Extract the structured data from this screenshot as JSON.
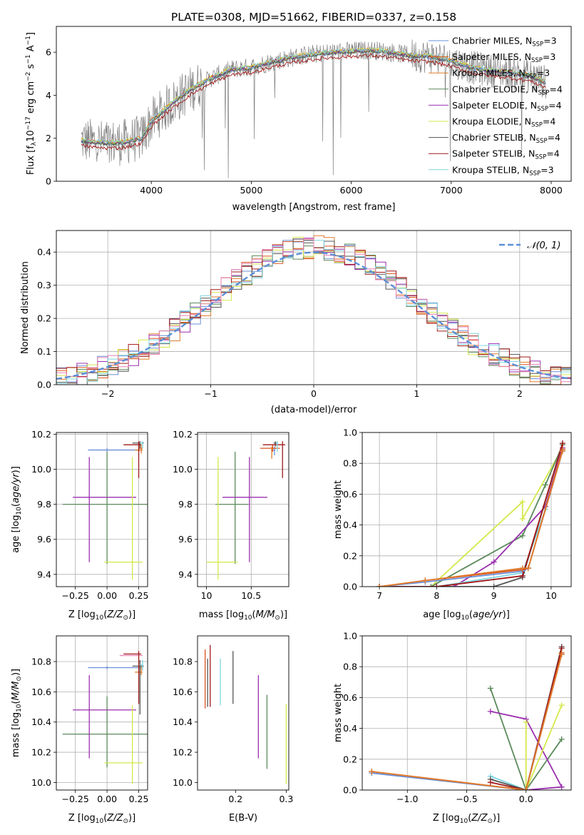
{
  "colors": {
    "chabrier_miles": "#6a8fd8",
    "salpeter_miles": "#d9541e",
    "kroupa_miles": "#e07b2a",
    "chabrier_elodie": "#5b8a5b",
    "salpeter_elodie": "#9b30b0",
    "kroupa_elodie": "#d4e84a",
    "chabrier_stelib": "#555555",
    "salpeter_stelib": "#a01818",
    "kroupa_stelib": "#7fd6e0",
    "data": "#808080",
    "pink": "#e87fb0"
  },
  "chart_data": [
    {
      "id": "spectrum",
      "type": "line",
      "title": "PLATE=0308, MJD=51662, FIBERID=0337, z=0.158",
      "xlabel": "wavelength [Angstrom, rest frame]",
      "ylabel": "Flux [fλ10⁻¹⁷ erg cm⁻² s⁻¹ A⁻¹]",
      "xlim": [
        3050,
        8200
      ],
      "ylim": [
        0,
        7.2
      ],
      "xticks": [
        4000,
        5000,
        6000,
        7000,
        8000
      ],
      "yticks": [
        0,
        2,
        4,
        6
      ],
      "model_continuum": {
        "x": [
          3300,
          3500,
          3700,
          3900,
          4000,
          4200,
          4400,
          4600,
          4800,
          5000,
          5200,
          5400,
          5600,
          5800,
          6000,
          6200,
          6400,
          6600,
          6800,
          7000,
          7200,
          7400,
          7600,
          7800,
          7950
        ],
        "y": [
          1.9,
          1.8,
          1.8,
          2.0,
          2.8,
          3.6,
          4.3,
          4.8,
          5.2,
          5.3,
          5.55,
          5.75,
          5.9,
          6.0,
          6.05,
          6.1,
          6.0,
          5.85,
          5.8,
          5.6,
          5.3,
          5.15,
          5.05,
          4.9,
          4.6
        ]
      },
      "legend": [
        {
          "label": "Chabrier MILES, N",
          "sub": "SSP",
          "tail": "=3",
          "color_key": "chabrier_miles"
        },
        {
          "label": "Salpeter MILES, N",
          "sub": "SSP",
          "tail": "=3",
          "color_key": "salpeter_miles"
        },
        {
          "label": "Kroupa MILES, N",
          "sub": "SSP",
          "tail": "=3",
          "color_key": "kroupa_miles"
        },
        {
          "label": "Chabrier ELODIE, N",
          "sub": "SSP",
          "tail": "=4",
          "color_key": "chabrier_elodie"
        },
        {
          "label": "Salpeter ELODIE, N",
          "sub": "SSP",
          "tail": "=4",
          "color_key": "salpeter_elodie"
        },
        {
          "label": "Kroupa ELODIE, N",
          "sub": "SSP",
          "tail": "=4",
          "color_key": "kroupa_elodie"
        },
        {
          "label": "Chabrier STELIB, N",
          "sub": "SSP",
          "tail": "=4",
          "color_key": "chabrier_stelib"
        },
        {
          "label": "Salpeter STELIB, N",
          "sub": "SSP",
          "tail": "=4",
          "color_key": "salpeter_stelib"
        },
        {
          "label": "Kroupa STELIB, N",
          "sub": "SSP",
          "tail": "=3",
          "color_key": "kroupa_stelib"
        }
      ],
      "legend_position": "upper right"
    },
    {
      "id": "residuals",
      "type": "histogram",
      "xlabel": "(data-model)/error",
      "ylabel": "Normed distribution",
      "xlim": [
        -2.5,
        2.5
      ],
      "ylim": [
        0,
        0.465
      ],
      "xticks": [
        -2,
        -1,
        0,
        1,
        2
      ],
      "yticks": [
        0.0,
        0.1,
        0.2,
        0.3,
        0.4
      ],
      "legend": "𝒩(0, 1)",
      "legend_position": "upper right",
      "gaussian": {
        "mean": 0,
        "sigma": 1
      },
      "bin_width": 0.1,
      "grid": true
    },
    {
      "id": "age_vs_Z",
      "type": "errorbar",
      "xlabel": "Z [log₁₀(Z/Z⊙)]",
      "ylabel": "age  [log₁₀(age/yr)]",
      "xlim": [
        -0.4,
        0.32
      ],
      "ylim": [
        9.33,
        10.21
      ],
      "xticks": [
        -0.25,
        0.0,
        0.25
      ],
      "yticks": [
        9.4,
        9.6,
        9.8,
        10.0,
        10.2
      ],
      "points": [
        {
          "key": "chabrier_elodie",
          "x": 0.0,
          "xerr": [
            0.35,
            0.35
          ],
          "y": 9.8,
          "yerr": [
            0.34,
            0.3
          ]
        },
        {
          "key": "salpeter_elodie",
          "x": -0.14,
          "xerr": [
            0.13,
            0.37
          ],
          "y": 9.84,
          "yerr": [
            0.37,
            0.23
          ]
        },
        {
          "key": "kroupa_elodie",
          "x": 0.2,
          "xerr": [
            0.22,
            0.08
          ],
          "y": 9.47,
          "yerr": [
            0.1,
            0.6
          ]
        },
        {
          "key": "chabrier_miles",
          "x": 0.0,
          "xerr": [
            0.15,
            0.28
          ],
          "y": 10.11,
          "yerr": [
            0.01,
            0.01
          ]
        },
        {
          "key": "salpeter_miles",
          "x": 0.25,
          "xerr": [
            0.0,
            0.03
          ],
          "y": 10.12,
          "yerr": [
            0.02,
            0.03
          ]
        },
        {
          "key": "kroupa_miles",
          "x": 0.27,
          "xerr": [
            0.05,
            0.01
          ],
          "y": 10.11,
          "yerr": [
            0.02,
            0.03
          ]
        },
        {
          "key": "chabrier_stelib",
          "x": 0.26,
          "xerr": [
            0.06,
            0.03
          ],
          "y": 10.15,
          "yerr": [
            0.03,
            0.01
          ]
        },
        {
          "key": "salpeter_stelib",
          "x": 0.25,
          "xerr": [
            0.12,
            0.02
          ],
          "y": 10.14,
          "yerr": [
            0.19,
            0.02
          ]
        },
        {
          "key": "kroupa_stelib",
          "x": 0.28,
          "xerr": [
            0.02,
            0.0
          ],
          "y": 10.15,
          "yerr": [
            0.03,
            0.01
          ]
        }
      ]
    },
    {
      "id": "age_vs_mass",
      "type": "errorbar",
      "xlabel": "mass [log₁₀(M/M⊙)]",
      "ylabel": "",
      "xlim": [
        9.9,
        10.92
      ],
      "ylim": [
        9.33,
        10.21
      ],
      "xticks": [
        10.0,
        10.5
      ],
      "yticks": [
        9.4,
        9.6,
        9.8,
        10.0,
        10.2
      ],
      "points": [
        {
          "key": "chabrier_elodie",
          "x": 10.32,
          "xerr": [
            0.22,
            0.15
          ],
          "y": 9.8,
          "yerr": [
            0.34,
            0.3
          ]
        },
        {
          "key": "salpeter_elodie",
          "x": 10.48,
          "xerr": [
            0.3,
            0.2
          ],
          "y": 9.84,
          "yerr": [
            0.37,
            0.23
          ]
        },
        {
          "key": "kroupa_elodie",
          "x": 10.13,
          "xerr": [
            0.13,
            0.22
          ],
          "y": 9.47,
          "yerr": [
            0.1,
            0.6
          ]
        },
        {
          "key": "chabrier_miles",
          "x": 10.76,
          "xerr": [
            0.03,
            0.01
          ],
          "y": 10.11,
          "yerr": [
            0.03,
            0.02
          ]
        },
        {
          "key": "salpeter_miles",
          "x": 10.74,
          "xerr": [
            0.14,
            0.08
          ],
          "y": 10.12,
          "yerr": [
            0.02,
            0.02
          ]
        },
        {
          "key": "kroupa_miles",
          "x": 10.73,
          "xerr": [
            0.01,
            0.01
          ],
          "y": 10.11,
          "yerr": [
            0.05,
            0.02
          ]
        },
        {
          "key": "chabrier_stelib",
          "x": 10.77,
          "xerr": [
            0.02,
            0.02
          ],
          "y": 10.15,
          "yerr": [
            0.02,
            0.01
          ]
        },
        {
          "key": "salpeter_stelib",
          "x": 10.85,
          "xerr": [
            0.22,
            0.03
          ],
          "y": 10.14,
          "yerr": [
            0.19,
            0.02
          ]
        },
        {
          "key": "kroupa_stelib",
          "x": 10.79,
          "xerr": [
            0.01,
            0.01
          ],
          "y": 10.15,
          "yerr": [
            0.05,
            0.01
          ]
        }
      ]
    },
    {
      "id": "mw_vs_age",
      "type": "line",
      "xlabel": "age  [log₁₀(age/yr)]",
      "ylabel": "mass weight",
      "xlim": [
        6.7,
        10.35
      ],
      "ylim": [
        0,
        1.0
      ],
      "xticks": [
        7,
        8,
        9,
        10
      ],
      "yticks": [
        0.0,
        0.2,
        0.4,
        0.6,
        0.8,
        1.0
      ],
      "series": [
        {
          "key": "kroupa_elodie",
          "x": [
            7.0,
            7.9,
            9.5,
            9.5,
            10.2
          ],
          "y": [
            0.0,
            0.0,
            0.55,
            0.44,
            0.9
          ]
        },
        {
          "key": "chabrier_elodie",
          "x": [
            7.0,
            7.9,
            9.5,
            9.9,
            10.2
          ],
          "y": [
            0.0,
            0.0,
            0.33,
            0.66,
            0.92
          ]
        },
        {
          "key": "salpeter_elodie",
          "x": [
            7.0,
            8.3,
            9.0,
            9.9,
            10.2
          ],
          "y": [
            0.0,
            0.0,
            0.16,
            0.52,
            0.9
          ]
        },
        {
          "key": "kroupa_stelib",
          "x": [
            7.0,
            8.0,
            9.5,
            9.9,
            10.2
          ],
          "y": [
            0.0,
            0.0,
            0.09,
            0.5,
            0.88
          ]
        },
        {
          "key": "chabrier_stelib",
          "x": [
            7.0,
            8.0,
            9.0,
            9.5,
            10.2
          ],
          "y": [
            0.0,
            0.0,
            0.0,
            0.06,
            0.93
          ]
        },
        {
          "key": "salpeter_stelib",
          "x": [
            7.0,
            8.0,
            9.5,
            10.2
          ],
          "y": [
            0.0,
            0.0,
            0.07,
            0.93
          ]
        },
        {
          "key": "chabrier_miles",
          "x": [
            7.0,
            7.8,
            9.5,
            9.6,
            10.2
          ],
          "y": [
            0.0,
            0.03,
            0.1,
            0.12,
            0.88
          ]
        },
        {
          "key": "salpeter_miles",
          "x": [
            7.0,
            7.8,
            9.5,
            9.6,
            10.2
          ],
          "y": [
            0.0,
            0.04,
            0.11,
            0.12,
            0.89
          ]
        },
        {
          "key": "kroupa_miles",
          "x": [
            7.0,
            7.8,
            9.5,
            9.6,
            10.2
          ],
          "y": [
            0.0,
            0.04,
            0.12,
            0.12,
            0.88
          ]
        }
      ]
    },
    {
      "id": "mass_vs_Z",
      "type": "errorbar",
      "xlabel": "Z [log₁₀(Z/Z⊙)]",
      "ylabel": "mass [log₁₀(M/M⊙)]",
      "xlim": [
        -0.4,
        0.32
      ],
      "ylim": [
        9.95,
        10.97
      ],
      "xticks": [
        -0.25,
        0.0,
        0.25
      ],
      "yticks": [
        10.0,
        10.2,
        10.4,
        10.6,
        10.8
      ],
      "points": [
        {
          "key": "chabrier_elodie",
          "x": 0.0,
          "xerr": [
            0.35,
            0.35
          ],
          "y": 10.32,
          "yerr": [
            0.22,
            0.25
          ]
        },
        {
          "key": "salpeter_elodie",
          "x": -0.14,
          "xerr": [
            0.13,
            0.37
          ],
          "y": 10.48,
          "yerr": [
            0.32,
            0.23
          ]
        },
        {
          "key": "kroupa_elodie",
          "x": 0.2,
          "xerr": [
            0.22,
            0.08
          ],
          "y": 10.13,
          "yerr": [
            0.14,
            0.38
          ]
        },
        {
          "key": "chabrier_miles",
          "x": 0.0,
          "xerr": [
            0.15,
            0.28
          ],
          "y": 10.76,
          "yerr": [
            0.01,
            0.01
          ]
        },
        {
          "key": "pink",
          "x": 0.1,
          "xerr": [
            0.0,
            0.18
          ],
          "y": 10.84,
          "yerr": [
            0.0,
            0.0
          ]
        },
        {
          "key": "kroupa_miles",
          "x": 0.27,
          "xerr": [
            0.05,
            0.01
          ],
          "y": 10.73,
          "yerr": [
            0.02,
            0.04
          ]
        },
        {
          "key": "chabrier_stelib",
          "x": 0.26,
          "xerr": [
            0.06,
            0.03
          ],
          "y": 10.77,
          "yerr": [
            0.32,
            0.04
          ]
        },
        {
          "key": "salpeter_stelib",
          "x": 0.25,
          "xerr": [
            0.12,
            0.02
          ],
          "y": 10.85,
          "yerr": [
            0.33,
            0.02
          ]
        },
        {
          "key": "kroupa_stelib",
          "x": 0.28,
          "xerr": [
            0.02,
            0.0
          ],
          "y": 10.78,
          "yerr": [
            0.04,
            0.03
          ]
        }
      ]
    },
    {
      "id": "mass_vs_ebv",
      "type": "errorbar",
      "xlabel": "E(B-V)",
      "ylabel": "",
      "xlim": [
        0.125,
        0.305
      ],
      "ylim": [
        9.95,
        10.97
      ],
      "xticks": [
        0.1,
        0.2,
        0.3
      ],
      "yticks": [
        10.0,
        10.2,
        10.4,
        10.6,
        10.8
      ],
      "points": [
        {
          "key": "salpeter_miles",
          "x": 0.14,
          "xerr": [
            0,
            0
          ],
          "y": 10.68,
          "yerr": [
            0.19,
            0.2
          ]
        },
        {
          "key": "chabrier_stelib",
          "x": 0.145,
          "xerr": [
            0,
            0
          ],
          "y": 10.66,
          "yerr": [
            0.16,
            0.16
          ]
        },
        {
          "key": "salpeter_stelib",
          "x": 0.15,
          "xerr": [
            0,
            0
          ],
          "y": 10.7,
          "yerr": [
            0.2,
            0.21
          ]
        },
        {
          "key": "kroupa_stelib",
          "x": 0.17,
          "xerr": [
            0,
            0
          ],
          "y": 10.66,
          "yerr": [
            0.15,
            0.16
          ]
        },
        {
          "key": "chabrier_stelib",
          "x": 0.195,
          "xerr": [
            0,
            0
          ],
          "y": 10.7,
          "yerr": [
            0.18,
            0.17
          ]
        },
        {
          "key": "salpeter_elodie",
          "x": 0.245,
          "xerr": [
            0,
            0
          ],
          "y": 10.44,
          "yerr": [
            0.28,
            0.27
          ]
        },
        {
          "key": "chabrier_elodie",
          "x": 0.262,
          "xerr": [
            0,
            0
          ],
          "y": 10.34,
          "yerr": [
            0.25,
            0.24
          ]
        },
        {
          "key": "kroupa_elodie",
          "x": 0.3,
          "xerr": [
            0,
            0
          ],
          "y": 10.26,
          "yerr": [
            0.27,
            0.26
          ]
        }
      ]
    },
    {
      "id": "mw_vs_Z",
      "type": "line",
      "xlabel": "Z [log₁₀(Z/Z⊙)]",
      "ylabel": "mass weight",
      "xlim": [
        -1.38,
        0.38
      ],
      "ylim": [
        0,
        1.0
      ],
      "xticks": [
        -1.0,
        -0.5,
        0.0
      ],
      "yticks": [
        0.0,
        0.2,
        0.4,
        0.6,
        0.8,
        1.0
      ],
      "series": [
        {
          "key": "chabrier_elodie",
          "x": [
            -0.3,
            0.0,
            0.3
          ],
          "y": [
            0.66,
            0.0,
            0.33
          ]
        },
        {
          "key": "salpeter_elodie",
          "x": [
            -0.3,
            0.0,
            0.3,
            0.0
          ],
          "y": [
            0.51,
            0.46,
            0.02,
            0.0
          ]
        },
        {
          "key": "kroupa_elodie",
          "x": [
            0.0,
            0.0,
            0.3
          ],
          "y": [
            0.44,
            0.0,
            0.55
          ]
        },
        {
          "key": "kroupa_stelib",
          "x": [
            -0.3,
            0.0,
            0.3
          ],
          "y": [
            0.09,
            0.0,
            0.89
          ]
        },
        {
          "key": "chabrier_stelib",
          "x": [
            -0.3,
            0.0,
            0.3
          ],
          "y": [
            0.07,
            0.0,
            0.93
          ]
        },
        {
          "key": "salpeter_stelib",
          "x": [
            -0.3,
            0.0,
            0.3
          ],
          "y": [
            0.05,
            0.0,
            0.92
          ]
        },
        {
          "key": "chabrier_miles",
          "x": [
            -1.3,
            0.0,
            0.3
          ],
          "y": [
            0.11,
            0.0,
            0.88
          ]
        },
        {
          "key": "salpeter_miles",
          "x": [
            -1.3,
            0.0,
            0.3
          ],
          "y": [
            0.12,
            0.0,
            0.89
          ]
        },
        {
          "key": "kroupa_miles",
          "x": [
            -1.3,
            0.0,
            0.3
          ],
          "y": [
            0.12,
            0.0,
            0.88
          ]
        }
      ]
    }
  ]
}
